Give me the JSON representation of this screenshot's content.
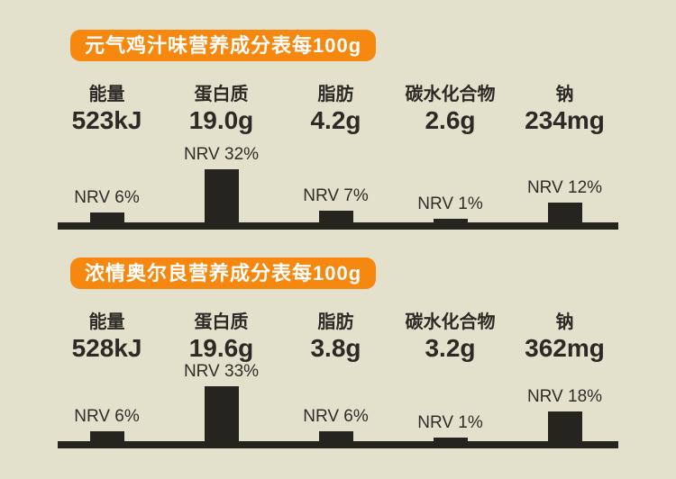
{
  "page": {
    "background_color": "#E3E1CC",
    "accent_orange": "#F6870F",
    "bar_color": "#26241E",
    "text_color": "#2B2A25"
  },
  "chart_data": [
    {
      "type": "bar",
      "title": "元气鸡汁味营养成分表每100g",
      "categories": [
        "能量",
        "蛋白质",
        "脂肪",
        "碳水化合物",
        "钠"
      ],
      "amounts": [
        "523kJ",
        "19.0g",
        "4.2g",
        "2.6g",
        "234mg"
      ],
      "values": [
        6,
        32,
        7,
        1,
        12
      ],
      "bar_labels": [
        "NRV 6%",
        "NRV 32%",
        "NRV 7%",
        "NRV 1%",
        "NRV 12%"
      ],
      "ylabel": "NRV %",
      "xlabel": "",
      "ylim": [
        0,
        35
      ],
      "grid": false,
      "legend": false
    },
    {
      "type": "bar",
      "title": "浓情奥尔良营养成分表每100g",
      "categories": [
        "能量",
        "蛋白质",
        "脂肪",
        "碳水化合物",
        "钠"
      ],
      "amounts": [
        "528kJ",
        "19.6g",
        "3.8g",
        "3.2g",
        "362mg"
      ],
      "values": [
        6,
        33,
        6,
        1,
        18
      ],
      "bar_labels": [
        "NRV 6%",
        "NRV 33%",
        "NRV 6%",
        "NRV 1%",
        "NRV 18%"
      ],
      "ylabel": "NRV %",
      "xlabel": "",
      "ylim": [
        0,
        35
      ],
      "grid": false,
      "legend": false
    }
  ]
}
